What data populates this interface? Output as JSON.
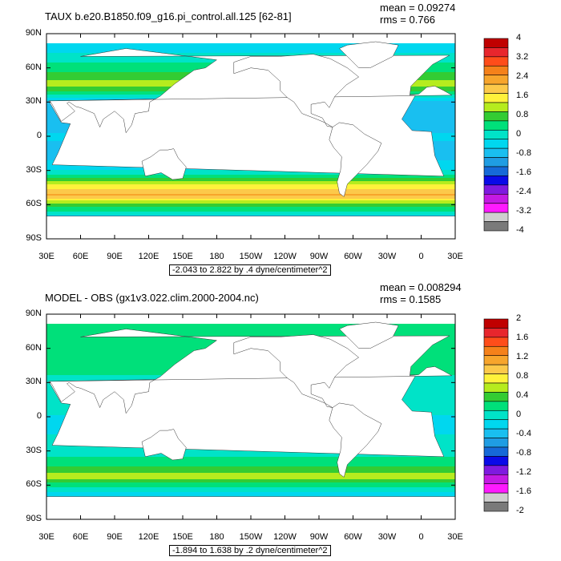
{
  "chart_data": [
    {
      "type": "heatmap",
      "title": "TAUX b.e20.B1850.f09_g16.pi_control.all.125 [62-81]",
      "stats": {
        "mean": "mean = 0.09274",
        "rms": "rms = 0.766"
      },
      "y_ticks": [
        "90N",
        "60N",
        "30N",
        "0",
        "30S",
        "60S",
        "90S"
      ],
      "x_ticks": [
        "30E",
        "60E",
        "90E",
        "120E",
        "150E",
        "180",
        "150W",
        "120W",
        "90W",
        "60W",
        "30W",
        "0",
        "30E"
      ],
      "range_label": "-2.043 to 2.822 by .4 dyne/centimeter^2",
      "colorbar": {
        "labels": [
          "4",
          "3.2",
          "2.4",
          "1.6",
          "0.8",
          "0",
          "-0.8",
          "-1.6",
          "-2.4",
          "-3.2",
          "-4"
        ],
        "colors": [
          "#c00000",
          "#e8262d",
          "#ff4d1a",
          "#f5811a",
          "#f7a52c",
          "#fcc94a",
          "#fff23b",
          "#b6ec1e",
          "#33cc33",
          "#00e07a",
          "#00e3c8",
          "#00d7ef",
          "#19bff0",
          "#1f9de3",
          "#1669d8",
          "#0a0ae8",
          "#7f1ae0",
          "#c41ae3",
          "#ff1aff",
          "#cfcfcf",
          "#7a7a7a"
        ]
      },
      "zonal_profile": {
        "lat": [
          75,
          60,
          45,
          30,
          15,
          0,
          -15,
          -30,
          -45,
          -52,
          -60,
          -70
        ],
        "value": [
          -0.3,
          0.4,
          1.2,
          -0.6,
          -0.9,
          -0.5,
          -0.8,
          -0.2,
          1.6,
          2.2,
          0.8,
          -0.3
        ]
      }
    },
    {
      "type": "heatmap",
      "title": "MODEL - OBS (gx1v3.022.clim.2000-2004.nc)",
      "stats": {
        "mean": "mean = 0.008294",
        "rms": "rms = 0.1585"
      },
      "y_ticks": [
        "90N",
        "60N",
        "30N",
        "0",
        "30S",
        "60S",
        "90S"
      ],
      "x_ticks": [
        "30E",
        "60E",
        "90E",
        "120E",
        "150E",
        "180",
        "150W",
        "120W",
        "90W",
        "60W",
        "30W",
        "0",
        "30E"
      ],
      "range_label": "-1.894 to 1.638 by .2 dyne/centimeter^2",
      "colorbar": {
        "labels": [
          "2",
          "1.6",
          "1.2",
          "0.8",
          "0.4",
          "0",
          "-0.4",
          "-0.8",
          "-1.2",
          "-1.6",
          "-2"
        ],
        "colors": [
          "#c00000",
          "#e8262d",
          "#ff4d1a",
          "#f5811a",
          "#f7a52c",
          "#fcc94a",
          "#fff23b",
          "#b6ec1e",
          "#33cc33",
          "#00e07a",
          "#00e3c8",
          "#00d7ef",
          "#19bff0",
          "#1f9de3",
          "#1669d8",
          "#0a0ae8",
          "#7f1ae0",
          "#c41ae3",
          "#ff1aff",
          "#cfcfcf",
          "#7a7a7a"
        ]
      },
      "zonal_profile": {
        "lat": [
          75,
          60,
          45,
          30,
          15,
          0,
          -15,
          -30,
          -45,
          -52,
          -60,
          -70
        ],
        "value": [
          0.1,
          0.1,
          0.2,
          0.0,
          0.0,
          -0.1,
          -0.1,
          0.0,
          0.3,
          0.6,
          0.2,
          -0.3
        ]
      }
    }
  ]
}
